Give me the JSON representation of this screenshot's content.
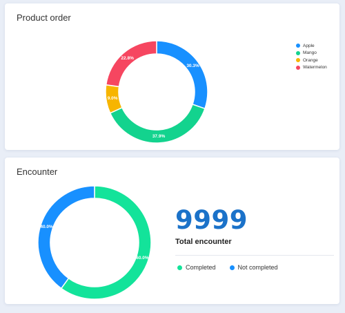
{
  "chart_data": [
    {
      "type": "pie",
      "title": "Product order",
      "categories": [
        "Apple",
        "Mango",
        "Orange",
        "Watermelon"
      ],
      "values": [
        30.3,
        37.9,
        9.0,
        22.8
      ],
      "labels": [
        "30.3%",
        "37.9%",
        "9.0%",
        "22.8%"
      ],
      "colors": [
        "#1890ff",
        "#13d38e",
        "#f7b500",
        "#f64660"
      ],
      "legend_position": "right"
    },
    {
      "type": "pie",
      "title": "Encounter",
      "categories": [
        "Completed",
        "Not completed"
      ],
      "values": [
        60.0,
        40.0
      ],
      "labels": [
        "60.0%",
        "40.0%"
      ],
      "colors": [
        "#13e39a",
        "#1890ff"
      ],
      "legend_position": "bottom"
    }
  ],
  "encounter": {
    "total_value": "9999",
    "total_label": "Total encounter"
  }
}
